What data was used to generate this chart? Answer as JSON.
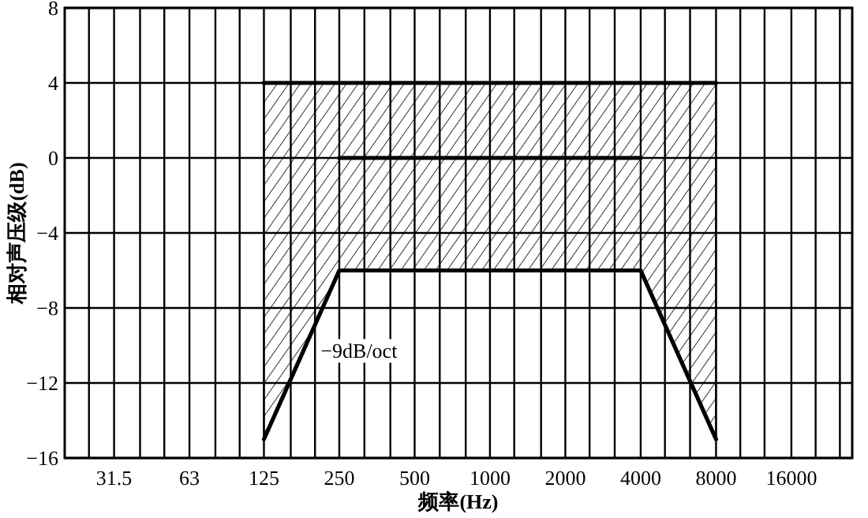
{
  "chart_data": {
    "type": "line",
    "xlabel": "频率(Hz)",
    "ylabel": "相对声压级(dB)",
    "log": "x",
    "xlim": [
      20,
      28000
    ],
    "xticks": [
      {
        "value": 25,
        "label": null
      },
      31.5,
      {
        "value": 40,
        "label": null
      },
      {
        "value": 50,
        "label": null
      },
      63,
      {
        "value": 80,
        "label": null
      },
      {
        "value": 100,
        "label": null
      },
      125,
      {
        "value": 160,
        "label": null
      },
      {
        "value": 200,
        "label": null
      },
      250,
      {
        "value": 315,
        "label": null
      },
      {
        "value": 400,
        "label": null
      },
      500,
      {
        "value": 630,
        "label": null
      },
      {
        "value": 800,
        "label": null
      },
      1000,
      {
        "value": 1250,
        "label": null
      },
      {
        "value": 1600,
        "label": null
      },
      2000,
      {
        "value": 2500,
        "label": null
      },
      {
        "value": 3150,
        "label": null
      },
      4000,
      {
        "value": 5000,
        "label": null
      },
      {
        "value": 6300,
        "label": null
      },
      8000,
      {
        "value": 10000,
        "label": null
      },
      {
        "value": 12500,
        "label": null
      },
      16000,
      {
        "value": 20000,
        "label": null
      },
      {
        "value": 25000,
        "label": null
      }
    ],
    "ylim": [
      -16,
      8
    ],
    "yticks": [
      -16,
      -12,
      -8,
      -4,
      0,
      4,
      8
    ],
    "grid": true,
    "series": [
      {
        "color": "#000000",
        "x": [
          125,
          250,
          4000,
          8000
        ],
        "values": [
          4,
          4,
          4,
          4
        ],
        "lower": [
          -15,
          -6,
          -6,
          -15
        ],
        "upper": [
          4,
          4,
          4,
          4
        ]
      },
      {
        "color": "#000000",
        "x": [
          125,
          250,
          4000,
          8000
        ],
        "values": [
          -15,
          -6,
          -6,
          -15
        ]
      },
      {
        "color": "#000000",
        "x": [
          250,
          4000
        ],
        "values": [
          0,
          0
        ]
      }
    ],
    "annotations": [
      {
        "text": "−9dB/oct",
        "x": 177,
        "y": -10.5
      }
    ]
  }
}
